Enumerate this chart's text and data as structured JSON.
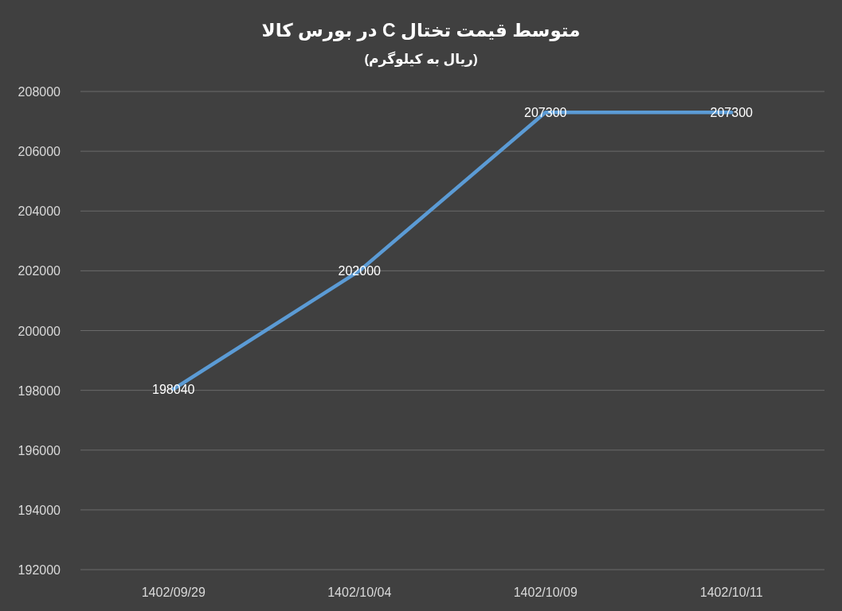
{
  "chart_data": {
    "type": "line",
    "title": "متوسط قیمت تختال C در بورس کالا",
    "subtitle": "(ریال به کیلوگرم)",
    "categories": [
      "1402/09/29",
      "1402/10/04",
      "1402/10/09",
      "1402/10/11"
    ],
    "series": [
      {
        "color": "#5b9bd5",
        "values": [
          198040,
          202000,
          207300,
          207300
        ]
      }
    ],
    "ylim": [
      192000,
      208000
    ],
    "yticks": [
      192000,
      194000,
      196000,
      198000,
      200000,
      202000,
      204000,
      206000,
      208000
    ],
    "grid": "y",
    "data_labels": true,
    "marker": "none",
    "line_style": "solid"
  }
}
